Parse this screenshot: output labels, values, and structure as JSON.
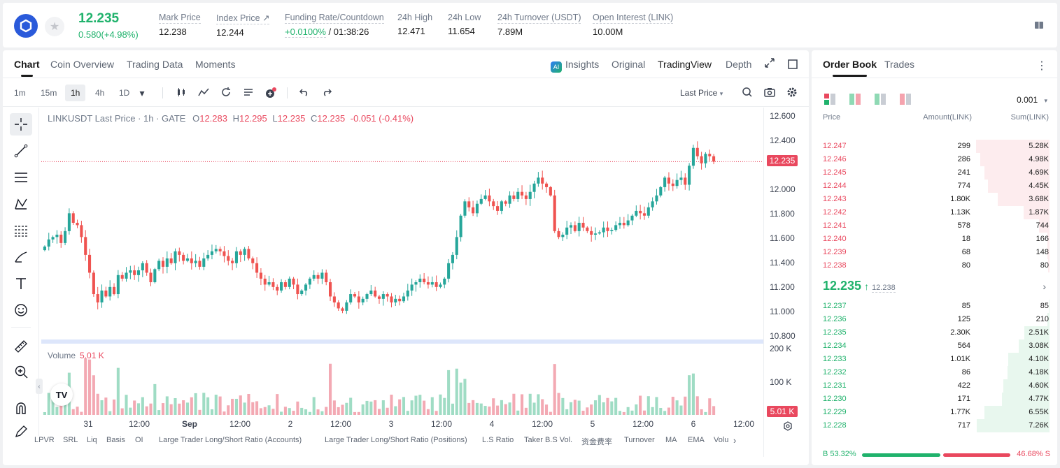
{
  "ticker": {
    "price": "12.235",
    "change": "0.580(+4.98%)",
    "mark_price_label": "Mark Price",
    "mark_price": "12.238",
    "index_price_label": "Index Price ↗",
    "index_price": "12.244",
    "funding_label": "Funding Rate/Countdown",
    "funding_rate": "+0.0100%",
    "countdown": " / 01:38:26",
    "high_label": "24h High",
    "high": "12.471",
    "low_label": "24h Low",
    "low": "11.654",
    "turnover_label": "24h Turnover (USDT)",
    "turnover": "7.89M",
    "oi_label": "Open Interest (LINK)",
    "oi": "10.00M"
  },
  "chart_tabs": [
    "Chart",
    "Coin Overview",
    "Trading Data",
    "Moments"
  ],
  "view_tabs": {
    "insights": "Insights",
    "original": "Original",
    "tradingview": "TradingView",
    "depth": "Depth"
  },
  "timeframes": [
    "1m",
    "15m",
    "1h",
    "4h",
    "1D"
  ],
  "last_price_select": "Last Price",
  "legend": {
    "symbol": "LINKUSDT Last Price · 1h · GATE",
    "o_label": "O",
    "o": "12.283",
    "h_label": "H",
    "h": "12.295",
    "l_label": "L",
    "l": "12.235",
    "c_label": "C",
    "c": "12.235",
    "chg": "-0.051 (-0.41%)"
  },
  "volume_legend": {
    "label": "Volume",
    "value": "5.01 K"
  },
  "yaxis": {
    "ticks": [
      "12.600",
      "12.400",
      "12.235",
      "12.000",
      "11.800",
      "11.600",
      "11.400",
      "11.200",
      "11.000",
      "10.800"
    ],
    "vol_ticks": [
      "200 K",
      "100 K",
      "5.01 K"
    ]
  },
  "xaxis": [
    "31",
    "12:00",
    "Sep",
    "12:00",
    "2",
    "12:00",
    "3",
    "12:00",
    "4",
    "12:00",
    "5",
    "12:00",
    "6",
    "12:00"
  ],
  "indicators": [
    "LPVR",
    "SRL",
    "Liq",
    "Basis",
    "OI",
    "Large Trader Long/Short Ratio (Accounts)",
    "Large Trader Long/Short Ratio (Positions)",
    "L.S Ratio",
    "Taker B.S Vol.",
    "资金费率",
    "Turnover",
    "MA",
    "EMA",
    "Volu"
  ],
  "colors": {
    "up": "#20b26c",
    "down": "#e9485e",
    "up_candle": "#26a69a",
    "down_candle": "#ef5350"
  },
  "chart_data": {
    "type": "candlestick",
    "ylim": [
      10.75,
      12.66
    ],
    "current_price": 12.235,
    "closes": [
      11.52,
      11.58,
      11.6,
      11.62,
      11.55,
      11.65,
      11.8,
      11.72,
      11.7,
      11.6,
      11.45,
      11.3,
      11.12,
      11.05,
      11.15,
      11.1,
      11.18,
      11.12,
      11.28,
      11.25,
      11.3,
      11.32,
      11.28,
      11.32,
      11.38,
      11.3,
      11.22,
      11.33,
      11.4,
      11.35,
      11.42,
      11.38,
      11.48,
      11.45,
      11.4,
      11.42,
      11.38,
      11.4,
      11.35,
      11.42,
      11.45,
      11.48,
      11.5,
      11.48,
      11.44,
      11.4,
      11.38,
      11.48,
      11.45,
      11.5,
      11.42,
      11.38,
      11.3,
      11.25,
      11.2,
      11.22,
      11.18,
      11.15,
      11.22,
      11.18,
      11.25,
      11.2,
      11.12,
      11.15,
      11.2,
      11.25,
      11.28,
      11.25,
      11.3,
      11.22,
      11.1,
      11.05,
      11.0,
      10.98,
      11.05,
      11.12,
      11.1,
      11.05,
      11.08,
      11.12,
      11.15,
      11.1,
      11.08,
      11.12,
      11.1,
      11.05,
      11.08,
      11.06,
      11.1,
      11.15,
      11.2,
      11.22,
      11.25,
      11.22,
      11.2,
      11.22,
      11.18,
      11.2,
      11.25,
      11.38,
      11.45,
      11.6,
      11.78,
      11.9,
      11.85,
      11.8,
      11.88,
      11.92,
      11.95,
      11.9,
      11.86,
      11.82,
      11.9,
      11.88,
      11.95,
      11.92,
      11.98,
      11.95,
      11.92,
      11.98,
      12.05,
      12.1,
      12.05,
      12.02,
      11.95,
      11.65,
      11.6,
      11.62,
      11.68,
      11.7,
      11.65,
      11.72,
      11.68,
      11.65,
      11.62,
      11.63,
      11.64,
      11.68,
      11.65,
      11.66,
      11.7,
      11.72,
      11.7,
      11.74,
      11.78,
      11.82,
      11.8,
      11.78,
      11.85,
      11.9,
      11.95,
      12.02,
      12.1,
      12.05,
      12.03,
      12.08,
      12.1,
      12.04,
      12.2,
      12.35,
      12.28,
      12.22,
      12.3,
      12.28,
      12.235
    ]
  },
  "orderbook": {
    "tabs": [
      "Order Book",
      "Trades"
    ],
    "precision": "0.001",
    "headers": {
      "price": "Price",
      "amount": "Amount(LINK)",
      "sum": "Sum(LINK)"
    },
    "asks": [
      {
        "p": "12.247",
        "a": "299",
        "s": "5.28K",
        "d": 1.0
      },
      {
        "p": "12.246",
        "a": "286",
        "s": "4.98K",
        "d": 0.94
      },
      {
        "p": "12.245",
        "a": "241",
        "s": "4.69K",
        "d": 0.89
      },
      {
        "p": "12.244",
        "a": "774",
        "s": "4.45K",
        "d": 0.84
      },
      {
        "p": "12.243",
        "a": "1.80K",
        "s": "3.68K",
        "d": 0.7
      },
      {
        "p": "12.242",
        "a": "1.13K",
        "s": "1.87K",
        "d": 0.35
      },
      {
        "p": "12.241",
        "a": "578",
        "s": "744",
        "d": 0.14
      },
      {
        "p": "12.240",
        "a": "18",
        "s": "166",
        "d": 0.03
      },
      {
        "p": "12.239",
        "a": "68",
        "s": "148",
        "d": 0.03
      },
      {
        "p": "12.238",
        "a": "80",
        "s": "80",
        "d": 0.02
      }
    ],
    "mid": {
      "price": "12.235",
      "arrow": "↑",
      "mark": "12.238"
    },
    "bids": [
      {
        "p": "12.237",
        "a": "85",
        "s": "85",
        "d": 0.01
      },
      {
        "p": "12.236",
        "a": "125",
        "s": "210",
        "d": 0.03
      },
      {
        "p": "12.235",
        "a": "2.30K",
        "s": "2.51K",
        "d": 0.34
      },
      {
        "p": "12.234",
        "a": "564",
        "s": "3.08K",
        "d": 0.42
      },
      {
        "p": "12.233",
        "a": "1.01K",
        "s": "4.10K",
        "d": 0.56
      },
      {
        "p": "12.232",
        "a": "86",
        "s": "4.18K",
        "d": 0.57
      },
      {
        "p": "12.231",
        "a": "422",
        "s": "4.60K",
        "d": 0.63
      },
      {
        "p": "12.230",
        "a": "171",
        "s": "4.77K",
        "d": 0.65
      },
      {
        "p": "12.229",
        "a": "1.77K",
        "s": "6.55K",
        "d": 0.89
      },
      {
        "p": "12.228",
        "a": "717",
        "s": "7.26K",
        "d": 0.99
      }
    ],
    "buy_ratio": "B 53.32%",
    "sell_ratio": "46.68% S"
  }
}
